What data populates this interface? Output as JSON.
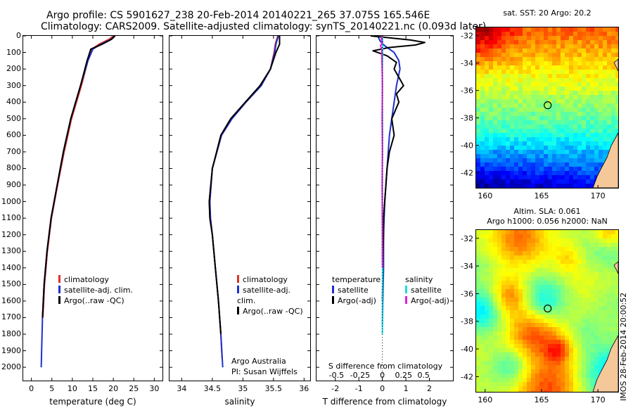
{
  "header": {
    "line1": "Argo profile: CS 5901627_238 20-Feb-2014 20140221_265 37.075S 165.546E",
    "line2": "Climatology: CARS2009. Satellite-adjusted climatology: synTS_20140221.nc (0.093d later)"
  },
  "colors": {
    "climatology": "#e0302a",
    "satellite": "#1c2fd0",
    "argo": "#000000",
    "sal_satellite": "#19dde0",
    "sal_argo": "#e020d8"
  },
  "depth_axis": {
    "ticks": [
      0,
      100,
      200,
      300,
      400,
      500,
      600,
      700,
      800,
      900,
      1000,
      1100,
      1200,
      1300,
      1400,
      1500,
      1600,
      1700,
      1800,
      1900,
      2000
    ],
    "min": 0,
    "max": 2080
  },
  "chart_data": [
    {
      "type": "line",
      "xlabel": "temperature (deg C)",
      "xlim": [
        -2,
        32
      ],
      "xticks": [
        0,
        5,
        10,
        15,
        20,
        25,
        30
      ],
      "legend": [
        "climatology",
        "satellite-adj. clim.",
        "Argo(..raw -QC)"
      ],
      "legend_position": "lower-center",
      "series": [
        {
          "name": "climatology",
          "color": "#e0302a",
          "depth": [
            0,
            20,
            50,
            80,
            150,
            300,
            500,
            700,
            900,
            1100,
            1300,
            1500,
            1700
          ],
          "values": [
            20.0,
            19.0,
            16.5,
            14.8,
            13.8,
            12.2,
            9.8,
            8.0,
            6.4,
            4.9,
            3.9,
            3.2,
            2.8
          ]
        },
        {
          "name": "satellite-adj. clim.",
          "color": "#1c2fd0",
          "depth": [
            0,
            20,
            50,
            80,
            150,
            300,
            500,
            700,
            900,
            1100,
            1300,
            1500,
            1700,
            1900,
            2000
          ],
          "values": [
            20.5,
            19.5,
            17.0,
            15.0,
            13.8,
            12.0,
            9.6,
            7.8,
            6.3,
            4.8,
            3.8,
            3.1,
            2.7,
            2.5,
            2.4
          ]
        },
        {
          "name": "Argo(..raw -QC)",
          "color": "#000000",
          "depth": [
            0,
            20,
            50,
            80,
            150,
            300,
            500,
            700,
            900,
            1100,
            1300,
            1500,
            1700
          ],
          "values": [
            20.3,
            19.6,
            17.3,
            14.5,
            13.6,
            12.0,
            9.6,
            7.8,
            6.3,
            4.8,
            3.8,
            3.1,
            2.7
          ]
        }
      ]
    },
    {
      "type": "line",
      "xlabel": "salinity",
      "xlim": [
        33.8,
        36.1
      ],
      "xticks": [
        34,
        34.5,
        35,
        35.5,
        36
      ],
      "legend": [
        "climatology",
        "satellite-adj. clim.",
        "Argo(..raw -QC)"
      ],
      "legend_position": "lower-center",
      "annotation": [
        "Argo Australia",
        "PI: Susan Wijffels"
      ],
      "series": [
        {
          "name": "climatology",
          "color": "#e0302a",
          "depth": [
            0,
            50,
            100,
            200,
            300,
            400,
            500,
            600,
            800,
            1000,
            1100,
            1200,
            1400,
            1600,
            1800,
            1950
          ],
          "values": [
            35.57,
            35.53,
            35.51,
            35.45,
            35.3,
            35.05,
            34.82,
            34.65,
            34.5,
            34.45,
            34.46,
            34.5,
            34.55,
            34.6,
            34.64,
            34.66
          ]
        },
        {
          "name": "satellite-adj. clim.",
          "color": "#1c2fd0",
          "depth": [
            0,
            50,
            100,
            200,
            300,
            400,
            500,
            600,
            800,
            1000,
            1100,
            1200,
            1400,
            1600,
            1800,
            2000
          ],
          "values": [
            35.58,
            35.54,
            35.52,
            35.45,
            35.3,
            35.05,
            34.82,
            34.65,
            34.5,
            34.46,
            34.47,
            34.5,
            34.55,
            34.6,
            34.64,
            34.67
          ]
        },
        {
          "name": "Argo(..raw -QC)",
          "color": "#000000",
          "depth": [
            0,
            50,
            100,
            200,
            300,
            400,
            500,
            600,
            800,
            1000,
            1100,
            1200,
            1400,
            1600,
            1800
          ],
          "values": [
            35.6,
            35.6,
            35.54,
            35.45,
            35.28,
            35.04,
            34.8,
            34.64,
            34.5,
            34.45,
            34.46,
            34.5,
            34.55,
            34.6,
            34.64
          ]
        }
      ]
    },
    {
      "type": "line",
      "xlabel": "T difference from climatology",
      "xlim": [
        -2.8,
        3.0
      ],
      "xticks": [
        -2,
        -1,
        0,
        1,
        2
      ],
      "top_xlabel": "S difference from climatology",
      "top_xticks": [
        "-0.5",
        "-0.25",
        "0",
        "0.25",
        "0.5"
      ],
      "legend_left_title": "temperature",
      "legend_right_title": "salinity",
      "legend_left": [
        "satellite",
        "Argo(-adj)"
      ],
      "legend_right": [
        "satellite",
        "Argo(-adj)"
      ],
      "legend_position": "lower-center",
      "series": [
        {
          "name": "satellite",
          "quantity": "temperature",
          "color": "#1c2fd0",
          "depth": [
            0,
            30,
            60,
            100,
            150,
            200,
            300,
            400,
            500,
            600,
            800,
            1000,
            1200,
            1400,
            1600,
            1750
          ],
          "values": [
            -0.2,
            -0.1,
            0.1,
            0.5,
            0.7,
            0.75,
            0.6,
            0.5,
            0.4,
            0.3,
            0.2,
            0.1,
            0.05,
            0.05,
            0.02,
            0.0
          ]
        },
        {
          "name": "Argo(-adj)",
          "quantity": "temperature",
          "color": "#000000",
          "depth": [
            0,
            25,
            40,
            55,
            70,
            90,
            120,
            160,
            200,
            250,
            300,
            350,
            400,
            500,
            600,
            700,
            800,
            900,
            1000,
            1100,
            1200,
            1300,
            1400,
            1500,
            1600
          ],
          "values": [
            -0.5,
            1.2,
            1.8,
            1.4,
            0.3,
            -0.4,
            0.2,
            0.6,
            0.5,
            0.7,
            0.9,
            0.6,
            0.7,
            0.4,
            0.5,
            0.3,
            0.2,
            0.15,
            0.1,
            0.05,
            0.05,
            0.03,
            0.02,
            0.01,
            0.0
          ]
        },
        {
          "name": "satellite",
          "quantity": "salinity",
          "color": "#19dde0",
          "depth": [
            0,
            100,
            200,
            400,
            600,
            800,
            1000,
            1200,
            1400,
            1600,
            1800
          ],
          "values": [
            0.01,
            0.01,
            0.0,
            0.0,
            0.01,
            0.0,
            0.0,
            0.0,
            0.01,
            0.0,
            0.0
          ]
        },
        {
          "name": "Argo(-adj)",
          "quantity": "salinity",
          "color": "#e020d8",
          "depth": [
            0,
            20,
            40,
            60,
            80,
            100,
            150,
            200,
            300,
            500,
            700,
            900,
            1200,
            1400
          ],
          "values": [
            0.02,
            -0.05,
            0.0,
            -0.08,
            -0.03,
            -0.02,
            -0.02,
            -0.01,
            0.0,
            -0.01,
            0.0,
            -0.01,
            0.0,
            0.0
          ]
        }
      ]
    },
    {
      "type": "heatmap",
      "title": "sat. SST: 20 Argo: 20.2",
      "xticks": [
        160,
        165,
        170
      ],
      "yticks": [
        -32,
        -34,
        -36,
        -38,
        -40,
        -42
      ],
      "xlim": [
        159.2,
        171.8
      ],
      "ylim": [
        -43.1,
        -31.4
      ],
      "marker": {
        "lon": 165.546,
        "lat": -37.075
      }
    },
    {
      "type": "heatmap",
      "title_lines": [
        "Altim. SLA: 0.061",
        "Argo h1000: 0.056 h2000: NaN"
      ],
      "xticks": [
        160,
        165,
        170
      ],
      "yticks": [
        -32,
        -34,
        -36,
        -38,
        -40,
        -42
      ],
      "xlim": [
        159.2,
        171.8
      ],
      "ylim": [
        -43.1,
        -31.4
      ],
      "marker": {
        "lon": 165.546,
        "lat": -37.075
      }
    }
  ],
  "stamp": "IMOS 28-Feb-2014 20:00:52"
}
